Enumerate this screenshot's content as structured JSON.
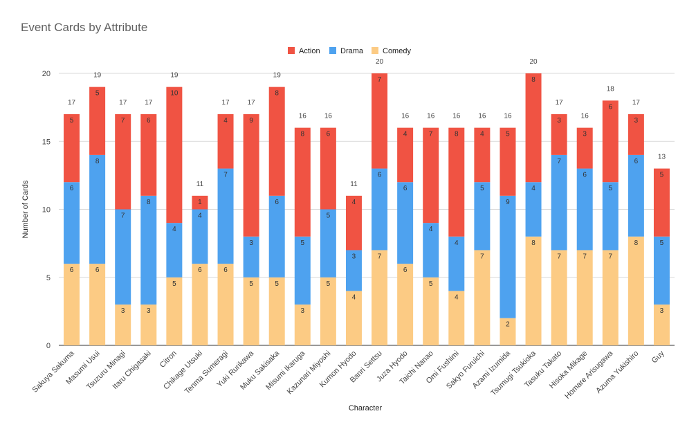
{
  "chart_data": {
    "type": "bar",
    "stacked": true,
    "title": "Event Cards by Attribute",
    "xlabel": "Character",
    "ylabel": "Number of Cards",
    "ylim": [
      0,
      20
    ],
    "yticks": [
      0,
      5,
      10,
      15,
      20
    ],
    "grid": true,
    "legend_position": "top",
    "categories": [
      "Sakuya Sakuma",
      "Masumi Usui",
      "Tsuzuru Minagi",
      "Itaru Chigasaki",
      "Citron",
      "Chikage Utsuki",
      "Tenma Sumeragi",
      "Yuki Rurikawa",
      "Muku Sakisaka",
      "Misumi Ikaruga",
      "Kazunari Miyoshi",
      "Kumon Hyodo",
      "Banri Settsu",
      "Juza Hyodo",
      "Taichi Nanao",
      "Omi Fushimi",
      "Sakyo Furuichi",
      "Azami Izumida",
      "Tsumugi Tsukioka",
      "Tasuku Takato",
      "Hisoka Mikage",
      "Homare Arisugawa",
      "Azuma Yukishiro",
      "Guy"
    ],
    "series": [
      {
        "name": "Action",
        "color": "#f05343",
        "values": [
          5,
          5,
          7,
          6,
          10,
          1,
          4,
          9,
          8,
          8,
          6,
          4,
          7,
          4,
          7,
          8,
          4,
          5,
          8,
          3,
          3,
          6,
          3,
          5
        ]
      },
      {
        "name": "Drama",
        "color": "#4ea2ef",
        "values": [
          6,
          8,
          7,
          8,
          4,
          4,
          7,
          3,
          6,
          5,
          5,
          3,
          6,
          6,
          4,
          4,
          5,
          9,
          4,
          7,
          6,
          5,
          6,
          5
        ]
      },
      {
        "name": "Comedy",
        "color": "#fccb84",
        "values": [
          6,
          6,
          3,
          3,
          5,
          6,
          6,
          5,
          5,
          3,
          5,
          4,
          7,
          6,
          5,
          4,
          7,
          2,
          8,
          7,
          7,
          7,
          8,
          3
        ]
      }
    ],
    "totals": [
      17,
      19,
      17,
      17,
      19,
      11,
      17,
      17,
      19,
      16,
      16,
      11,
      20,
      16,
      16,
      16,
      16,
      16,
      20,
      17,
      16,
      18,
      17,
      13
    ]
  }
}
